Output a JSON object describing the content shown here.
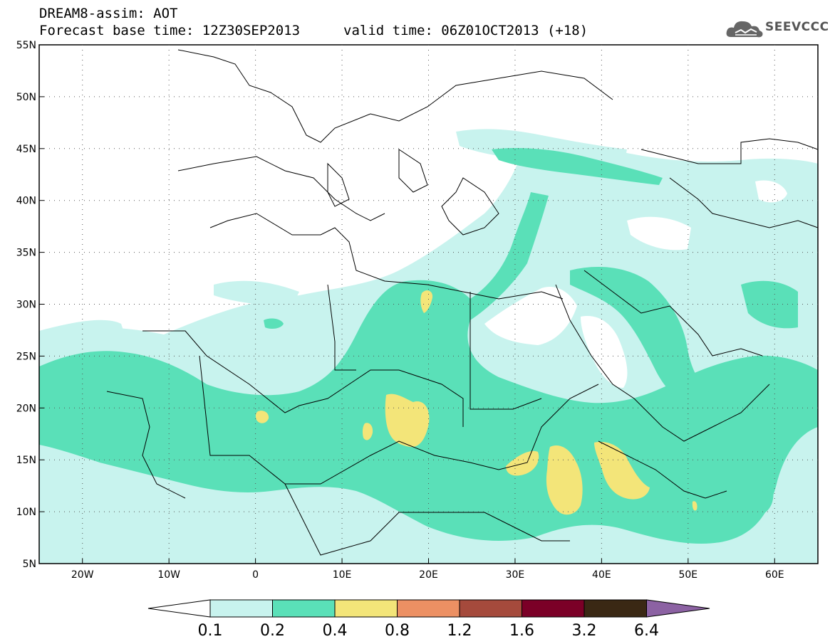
{
  "header": {
    "title": "DREAM8-assim: AOT",
    "base_time": "Forecast base time: 12Z30SEP2013",
    "valid_time": "valid time: 06Z01OCT2013 (+18)"
  },
  "logo": {
    "text": "SEEVCCC",
    "icon": "cloud-icon"
  },
  "map": {
    "lat_labels": [
      "55N",
      "50N",
      "45N",
      "40N",
      "35N",
      "30N",
      "25N",
      "20N",
      "15N",
      "10N",
      "5N"
    ],
    "lon_labels": [
      "20W",
      "10W",
      "0",
      "10E",
      "20E",
      "30E",
      "40E",
      "50E",
      "60E"
    ],
    "lat_range": [
      5,
      55
    ],
    "lon_range": [
      -25,
      65
    ],
    "grid": "dotted"
  },
  "colors": {
    "level_01": "#c8f3ee",
    "level_02": "#5ae0b8",
    "level_04": "#f3e579",
    "level_08": "#ec9063",
    "level_12": "#a54a3c",
    "level_16": "#7b0027",
    "level_32": "#3a2814",
    "level_64": "#8c62a3"
  },
  "colorbar": {
    "labels": [
      "0.1",
      "0.2",
      "0.4",
      "0.8",
      "1.2",
      "1.6",
      "3.2",
      "6.4"
    ]
  }
}
